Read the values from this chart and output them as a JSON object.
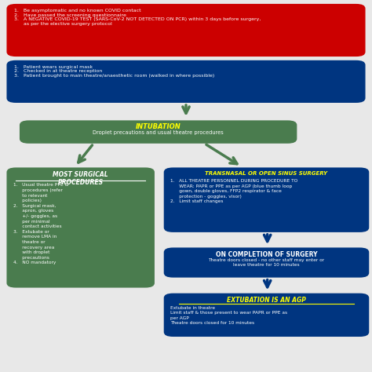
{
  "bg_color": "#e8e8e8",
  "red_box": {
    "color": "#cc0000",
    "text": "1.   Be asymptomatic and no known COVID contact\n2.   Have passed the screening questionnaire\n3.   A NEGATIVE COVID-19 TEST (SARS-CoV-2 NOT DETECTED ON PCR) within 3 days before surgery,\n      as per the elective surgery protocol",
    "text_color": "#ffffff"
  },
  "blue_box1": {
    "color": "#003580",
    "text": "1.   Patient wears surgical mask\n2.   Checked in at theatre reception\n3.   Patient brought to main theatre/anaesthetic room (walked in where possible)",
    "text_color": "#ffffff"
  },
  "intubation_box": {
    "color": "#4a7c4e",
    "title": "INTUBATION",
    "title_color": "#ffff00",
    "text": "Droplet precautions and usual theatre procedures",
    "text_color": "#ffffff"
  },
  "green_box": {
    "color": "#4a7c4e",
    "title": "MOST SURGICAL\nPROCEDURES",
    "title_color": "#ffffff",
    "text": "1.   Usual theatre PPE &\n      procedures (refer\n      to relevant\n      policies)\n2.   Surgical mask,\n      apron, gloves\n      +/- goggles, as\n      per minimal\n      contact activities\n3.   Extubate or\n      remove LMA in\n      theatre or\n      recovery area\n      with droplet\n      precautions\n4.   NO mandatory",
    "text_color": "#ffffff"
  },
  "blue_box2": {
    "color": "#003580",
    "title": "TRANSNASAL OR OPEN SINUS SURGERY",
    "title_color": "#ffff00",
    "text": "1.   ALL THEATRE PERSONNEL DURING PROCEDURE TO\n      WEAR: PAPR or PPE as per AGP (blue thumb loop\n      gown, double gloves, FFP2 respirator & face\n      protection - goggles, visor)\n2.   Limit staff changes",
    "text_color": "#ffffff"
  },
  "blue_box3": {
    "color": "#003580",
    "title": "ON COMPLETION OF SURGERY",
    "title_color": "#ffffff",
    "text": "Theatre doors closed - no other staff may enter or\nleave theatre for 10 minutes",
    "text_color": "#ffffff"
  },
  "blue_box4": {
    "color": "#003580",
    "title": "EXTUBATION IS AN AGP",
    "title_color": "#ffff00",
    "text": "Extubate in theatre\nLimit staff & those present to wear PAPR or PPE as\nper AGP\nTheatre doors closed for 10 minutes",
    "text_color": "#ffffff"
  },
  "arrow_color": "#003580",
  "green_arrow_color": "#4a7c4e"
}
